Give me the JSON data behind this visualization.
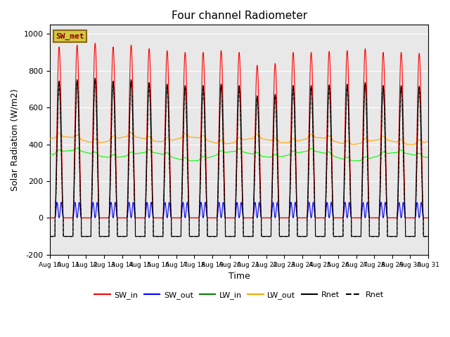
{
  "title": "Four channel Radiometer",
  "xlabel": "Time",
  "ylabel": "Solar Radiation (W/m2)",
  "ylim": [
    -200,
    1050
  ],
  "background_color": "#e8e8e8",
  "annotation_text": "SW_met",
  "annotation_bg": "#c8c870",
  "annotation_border": "#8b0000",
  "legend_entries": [
    "SW_in",
    "SW_out",
    "LW_in",
    "LW_out",
    "Rnet",
    "Rnet"
  ],
  "legend_colors": [
    "red",
    "blue",
    "green",
    "orange",
    "black",
    "black"
  ],
  "legend_linestyles": [
    "-",
    "-",
    "-",
    "-",
    "-",
    "--"
  ],
  "n_days": 21,
  "yticks": [
    -200,
    0,
    200,
    400,
    600,
    800,
    1000
  ]
}
